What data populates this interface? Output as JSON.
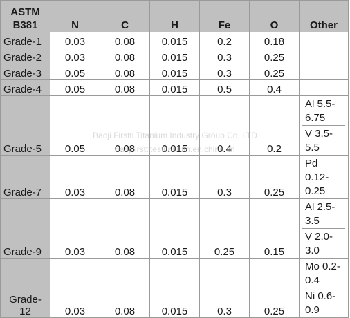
{
  "table": {
    "header": {
      "corner_line1": "ASTM",
      "corner_line2": "B381",
      "columns": [
        "N",
        "C",
        "H",
        "Fe",
        "O",
        "Other"
      ]
    },
    "rows": [
      {
        "grade": "Grade-1",
        "N": "0.03",
        "C": "0.08",
        "H": "0.015",
        "Fe": "0.2",
        "O": "0.18",
        "other": []
      },
      {
        "grade": "Grade-2",
        "N": "0.03",
        "C": "0.08",
        "H": "0.015",
        "Fe": "0.3",
        "O": "0.25",
        "other": []
      },
      {
        "grade": "Grade-3",
        "N": "0.05",
        "C": "0.08",
        "H": "0.015",
        "Fe": "0.3",
        "O": "0.25",
        "other": []
      },
      {
        "grade": "Grade-4",
        "N": "0.05",
        "C": "0.08",
        "H": "0.015",
        "Fe": "0.5",
        "O": "0.4",
        "other": []
      },
      {
        "grade": "Grade-5",
        "N": "0.05",
        "C": "0.08",
        "H": "0.015",
        "Fe": "0.4",
        "O": "0.2",
        "other": [
          "Al 5.5-6.75",
          "V 3.5-5.5"
        ]
      },
      {
        "grade": "Grade-7",
        "N": "0.03",
        "C": "0.08",
        "H": "0.015",
        "Fe": "0.3",
        "O": "0.25",
        "other": [
          "Pd 0.12-0.25"
        ]
      },
      {
        "grade": "Grade-9",
        "N": "0.03",
        "C": "0.08",
        "H": "0.015",
        "Fe": "0.25",
        "O": "0.15",
        "other": [
          "Al 2.5-3.5",
          "V 2.0-3.0"
        ]
      },
      {
        "grade": "Grade-12",
        "N": "0.03",
        "C": "0.08",
        "H": "0.015",
        "Fe": "0.3",
        "O": "0.25",
        "other": [
          "Mo 0.2-0.4",
          "Ni 0.6-0.9"
        ]
      }
    ]
  },
  "watermark": {
    "line1": "Baoji Firstti Titanium Industry Group Co. LTD",
    "line2": "baojifirsttitestitanium.en.china.cn"
  }
}
